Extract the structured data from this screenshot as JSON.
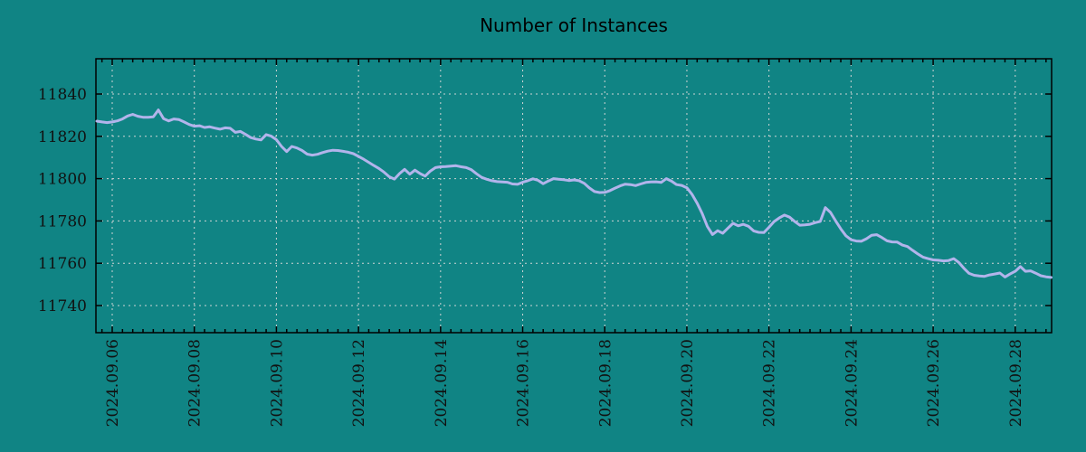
{
  "chart": {
    "title": "Number of Instances"
  },
  "chart_data": {
    "type": "line",
    "title": "Number of Instances",
    "xlabel": "",
    "ylabel": "",
    "legend_position": "none",
    "grid": true,
    "x_unit": "days since 2024.09.06",
    "xlim_days": [
      -0.3968,
      22.8863
    ],
    "ylim": [
      11727.18,
      11856.67
    ],
    "y_ticks": [
      11740,
      11760,
      11780,
      11800,
      11820,
      11840
    ],
    "x_major_tick_days": [
      0,
      2,
      4,
      6,
      8,
      10,
      12,
      14,
      16,
      18,
      20,
      22
    ],
    "x_major_tick_labels": [
      "2024.09.06",
      "2024.09.08",
      "2024.09.10",
      "2024.09.12",
      "2024.09.14",
      "2024.09.16",
      "2024.09.18",
      "2024.09.20",
      "2024.09.22",
      "2024.09.24",
      "2024.09.26",
      "2024.09.28"
    ],
    "x_minor_step_days": 0.25,
    "colors": {
      "background": "#108484",
      "line": "#b2b4eb",
      "grid": "#d8d8d8",
      "axis": "#000000",
      "text": "#111111"
    },
    "series": [
      {
        "name": "Number of Instances",
        "x_start_days": -0.375,
        "x_step_days": 0.125,
        "values": [
          11827.2,
          11826.8,
          11826.5,
          11826.8,
          11827.3,
          11828.2,
          11829.6,
          11830.4,
          11829.5,
          11829.0,
          11829.0,
          11829.2,
          11832.5,
          11828.4,
          11827.3,
          11828.2,
          11827.9,
          11826.8,
          11825.6,
          11824.8,
          11825.0,
          11824.2,
          11824.5,
          11823.9,
          11823.4,
          11824.0,
          11823.8,
          11821.9,
          11822.3,
          11820.9,
          11819.4,
          11818.7,
          11818.3,
          11820.8,
          11820.1,
          11818.4,
          11815.2,
          11812.8,
          11815.2,
          11814.5,
          11813.3,
          11811.6,
          11811.1,
          11811.5,
          11812.3,
          11813.0,
          11813.4,
          11813.3,
          11812.9,
          11812.5,
          11811.8,
          11810.5,
          11809.2,
          11807.7,
          11806.2,
          11804.8,
          11803.0,
          11800.9,
          11799.8,
          11802.4,
          11804.4,
          11802.1,
          11804.0,
          11802.4,
          11801.2,
          11803.6,
          11805.2,
          11805.6,
          11805.7,
          11805.9,
          11806.1,
          11805.6,
          11805.2,
          11804.2,
          11802.3,
          11800.6,
          11799.7,
          11799.0,
          11798.6,
          11798.4,
          11798.3,
          11797.5,
          11797.3,
          11798.3,
          11799.0,
          11799.9,
          11799.2,
          11797.6,
          11798.9,
          11800.0,
          11799.7,
          11799.5,
          11799.1,
          11799.4,
          11799.0,
          11797.8,
          11795.6,
          11793.9,
          11793.4,
          11793.5,
          11794.3,
          11795.5,
          11796.6,
          11797.4,
          11797.2,
          11796.7,
          11797.5,
          11798.2,
          11798.4,
          11798.5,
          11798.2,
          11800.0,
          11798.8,
          11797.2,
          11796.8,
          11795.7,
          11792.6,
          11788.4,
          11783.4,
          11777.4,
          11773.6,
          11775.4,
          11774.2,
          11776.6,
          11778.9,
          11777.7,
          11778.4,
          11777.5,
          11775.3,
          11774.6,
          11774.5,
          11777.0,
          11779.7,
          11781.4,
          11782.8,
          11781.8,
          11779.8,
          11778.0,
          11778.1,
          11778.4,
          11779.2,
          11779.8,
          11786.3,
          11784.0,
          11780.0,
          11776.3,
          11773.0,
          11771.1,
          11770.5,
          11770.4,
          11771.6,
          11773.2,
          11773.5,
          11772.2,
          11770.6,
          11770.1,
          11770.0,
          11768.6,
          11767.9,
          11766.1,
          11764.4,
          11762.9,
          11762.2,
          11761.6,
          11761.4,
          11761.1,
          11761.3,
          11762.2,
          11760.4,
          11757.6,
          11755.2,
          11754.3,
          11754.0,
          11753.8,
          11754.5,
          11754.9,
          11755.4,
          11753.5,
          11754.9,
          11756.2,
          11758.4,
          11756.2,
          11756.4,
          11755.3,
          11754.1,
          11753.6,
          11753.3
        ]
      }
    ]
  }
}
